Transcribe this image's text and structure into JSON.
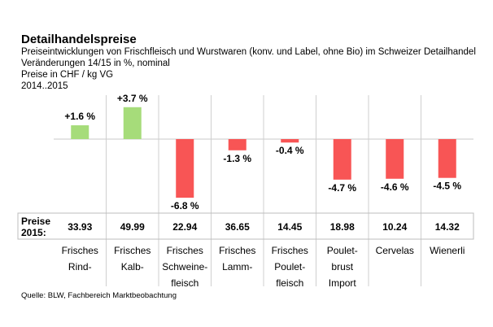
{
  "header": {
    "title": "Detailhandelspreise",
    "subtitle_lines": [
      "Preiseintwicklungen von Frischfleisch und Wurstwaren (konv. und Label, ohne Bio) im Schweizer Detailhandel",
      "Veränderungen 14/15 in %, nominal",
      "Preise in CHF / kg VG",
      "2014..2015"
    ]
  },
  "chart_data": {
    "type": "bar",
    "categories": [
      [
        "Frisches",
        "Rind-"
      ],
      [
        "Frisches",
        "Kalb-"
      ],
      [
        "Frisches",
        "Schweine-",
        "fleisch"
      ],
      [
        "Frisches",
        "Lamm-"
      ],
      [
        "Frisches",
        "Poulet-",
        "fleisch"
      ],
      [
        "Poulet-",
        "brust",
        "Import"
      ],
      [
        "Cervelas"
      ],
      [
        "Wienerli"
      ]
    ],
    "values": [
      1.6,
      3.7,
      -6.8,
      -1.3,
      -0.4,
      -4.7,
      -4.6,
      -4.5
    ],
    "value_labels": [
      "+1.6 %",
      "+3.7 %",
      "-6.8 %",
      "-1.3 %",
      "-0.4 %",
      "-4.7 %",
      "-4.6 %",
      "-4.5 %"
    ],
    "unit": "%",
    "ylim": [
      -7.4,
      4.3
    ],
    "positive_color": "#a6dc7a",
    "negative_color": "#f85555",
    "grid": false,
    "prices_label": [
      "Preise",
      "2015:"
    ],
    "prices": [
      "33.93",
      "49.99",
      "22.94",
      "36.65",
      "14.45",
      "18.98",
      "10.24",
      "14.32"
    ]
  },
  "source": "Quelle: BLW, Fachbereich Marktbeobachtung"
}
